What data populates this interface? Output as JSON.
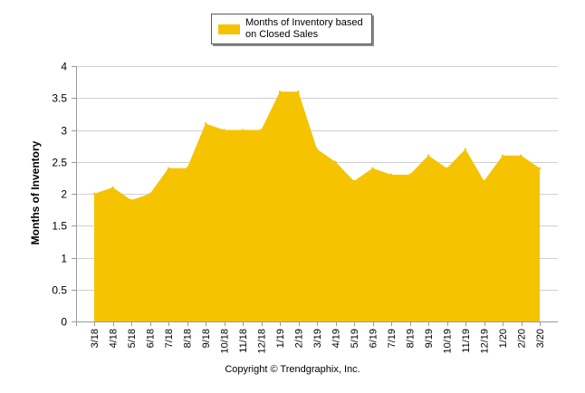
{
  "chart_data": {
    "type": "area",
    "title": "",
    "xlabel": "",
    "ylabel": "Months of Inventory",
    "ylim": [
      0,
      4
    ],
    "yticks": [
      0,
      0.5,
      1,
      1.5,
      2,
      2.5,
      3,
      3.5,
      4
    ],
    "ytick_labels": [
      "0",
      "0.5",
      "1",
      "1.5",
      "2",
      "2.5",
      "3",
      "3.5",
      "4"
    ],
    "grid": true,
    "legend_position": "top-center",
    "categories": [
      "3/18",
      "4/18",
      "5/18",
      "6/18",
      "7/18",
      "8/18",
      "9/18",
      "10/18",
      "11/18",
      "12/18",
      "1/19",
      "2/19",
      "3/19",
      "4/19",
      "5/19",
      "6/19",
      "7/19",
      "8/19",
      "9/19",
      "10/19",
      "11/19",
      "12/19",
      "1/20",
      "2/20",
      "3/20"
    ],
    "series": [
      {
        "name": "Months of Inventory based on Closed Sales",
        "legend_lines": [
          "Months of Inventory based",
          "on Closed Sales"
        ],
        "color": "#F5C300",
        "values": [
          2.0,
          2.1,
          1.9,
          2.0,
          2.4,
          2.4,
          3.1,
          3.0,
          3.0,
          3.0,
          3.6,
          3.6,
          2.7,
          2.5,
          2.2,
          2.4,
          2.3,
          2.3,
          2.6,
          2.4,
          2.7,
          2.2,
          2.6,
          2.6,
          2.4
        ]
      }
    ]
  },
  "footer": {
    "copyright": "Copyright © Trendgraphix, Inc."
  },
  "colors": {
    "area_fill": "#F5C300",
    "grid": "#d0d0d0",
    "axis": "#9a9a9a",
    "text": "#000000"
  }
}
